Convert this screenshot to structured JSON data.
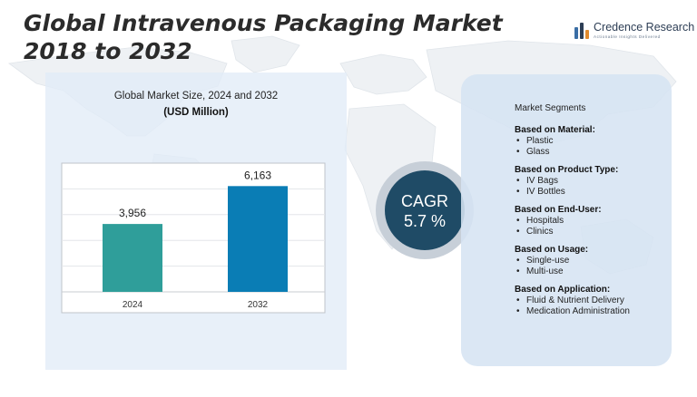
{
  "header": {
    "title": "Global Intravenous Packaging Market 2018 to 2032"
  },
  "logo": {
    "name": "Credence Research",
    "tagline": "Actionable Insights Delivered"
  },
  "chart_data": {
    "type": "bar",
    "title": "Global Market Size, 2024 and 2032",
    "subtitle": "(USD Million)",
    "categories": [
      "2024",
      "2032"
    ],
    "values": [
      3956,
      6163
    ],
    "value_labels": [
      "3,956",
      "6,163"
    ],
    "colors": [
      "#2f9e9a",
      "#0a7db5"
    ],
    "ylim": [
      0,
      7500
    ],
    "grid": true
  },
  "cagr": {
    "label": "CAGR",
    "value": "5.7 %"
  },
  "segments": {
    "heading": "Market Segments",
    "bullet": "•",
    "groups": [
      {
        "title": "Based on Material:",
        "items": [
          "Plastic",
          "Glass"
        ]
      },
      {
        "title": "Based on Product Type:",
        "items": [
          "IV Bags",
          "IV Bottles"
        ]
      },
      {
        "title": "Based on End-User:",
        "items": [
          "Hospitals",
          "Clinics"
        ]
      },
      {
        "title": "Based on Usage:",
        "items": [
          "Single-use",
          "Multi-use"
        ]
      },
      {
        "title": "Based on Application:",
        "items": [
          "Fluid & Nutrient Delivery",
          "Medication Administration"
        ]
      }
    ]
  }
}
